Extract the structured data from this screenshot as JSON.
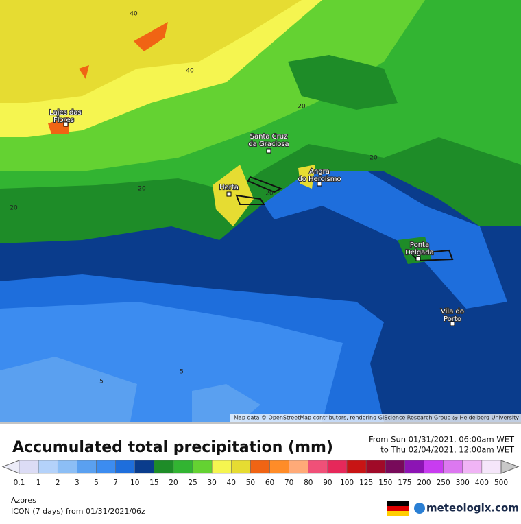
{
  "map": {
    "cities": [
      "Lajes das",
      "Flores",
      "Santa Cruz",
      "da Graciosa",
      "Horta",
      "Angra",
      "do Heroísmo",
      "Ponta",
      "Delgada",
      "Vila do",
      "Porto"
    ],
    "contour_labels": [
      "40",
      "40",
      "20",
      "20",
      "20",
      "20",
      "20",
      "5",
      "5"
    ],
    "attribution": "Map data © OpenStreetMap contributors, rendering GIScience Research Group @ Heidelberg University"
  },
  "legend": {
    "title": "Accumulated total precipitation (mm)",
    "period_from": "From Sun 01/31/2021, 06:00am WET",
    "period_to": "to Thu 02/04/2021, 12:00am WET",
    "levels": [
      0.1,
      1,
      2,
      3,
      5,
      7,
      10,
      15,
      20,
      25,
      30,
      40,
      50,
      60,
      70,
      80,
      90,
      100,
      125,
      150,
      175,
      200,
      250,
      300,
      400,
      500
    ],
    "colors": [
      "#dcdcf5",
      "#b4d2fa",
      "#8cbef5",
      "#5aa0f0",
      "#3c8cf0",
      "#1e6edc",
      "#0a3c8c",
      "#1e8c28",
      "#32b432",
      "#64d232",
      "#f5f550",
      "#e6dc32",
      "#f06414",
      "#ff8c28",
      "#ffaa78",
      "#f05078",
      "#e6285a",
      "#c81414",
      "#a00a28",
      "#780a5a",
      "#8c14b4",
      "#c83cf0",
      "#dc78f0",
      "#f0b4f5",
      "#f5e6fa"
    ],
    "under_color": "#ececf8",
    "over_color": "#c8c8c8"
  },
  "footer": {
    "region": "Azores",
    "model": "ICON (7 days) from 01/31/2021/06z",
    "brand": "meteologix.com"
  }
}
